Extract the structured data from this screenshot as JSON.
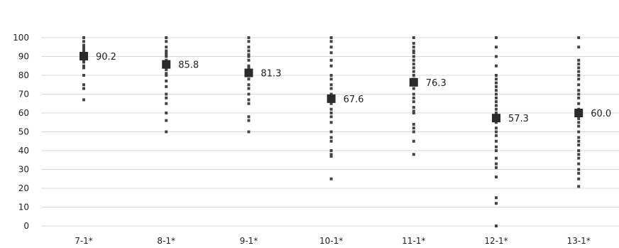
{
  "chart_data": {
    "type": "scatter",
    "title": "",
    "xlabel": "",
    "ylabel": "",
    "ylim": [
      0,
      100
    ],
    "yticks": [
      "0",
      "10",
      "20",
      "30",
      "40",
      "50",
      "60",
      "70",
      "80",
      "90",
      "100"
    ],
    "grid": true,
    "categories": [
      "7-1*",
      "8-1*",
      "9-1*",
      "10-1*",
      "11-1*",
      "12-1*",
      "13-1*"
    ],
    "means": [
      90.2,
      85.8,
      81.3,
      67.6,
      76.3,
      57.3,
      60.0
    ],
    "mean_labels": [
      "90.2",
      "85.8",
      "81.3",
      "67.6",
      "76.3",
      "57.3",
      "60.0"
    ],
    "points": [
      [
        100,
        98,
        96,
        95,
        94,
        93,
        92,
        91,
        90,
        89,
        88,
        87,
        85,
        84,
        80,
        75,
        73,
        67
      ],
      [
        100,
        98,
        95,
        93,
        92,
        91,
        90,
        88,
        87,
        85,
        83,
        81,
        80,
        77,
        74,
        70,
        68,
        65,
        60,
        56,
        50
      ],
      [
        100,
        98,
        95,
        93,
        91,
        90,
        88,
        85,
        84,
        82,
        80,
        78,
        75,
        73,
        70,
        67,
        65,
        58,
        56,
        50
      ],
      [
        100,
        98,
        95,
        92,
        88,
        85,
        80,
        78,
        75,
        73,
        70,
        68,
        65,
        62,
        60,
        58,
        55,
        50,
        47,
        45,
        40,
        38,
        37,
        25
      ],
      [
        100,
        97,
        95,
        93,
        92,
        90,
        88,
        86,
        84,
        82,
        80,
        78,
        75,
        73,
        70,
        68,
        66,
        63,
        61,
        60,
        54,
        52,
        50,
        45,
        38
      ],
      [
        100,
        95,
        90,
        85,
        80,
        78,
        76,
        74,
        72,
        70,
        68,
        66,
        64,
        62,
        60,
        58,
        55,
        52,
        50,
        48,
        45,
        42,
        40,
        36,
        33,
        31,
        26,
        15,
        12,
        0
      ],
      [
        100,
        95,
        88,
        86,
        84,
        82,
        80,
        78,
        75,
        72,
        70,
        68,
        65,
        62,
        57,
        55,
        53,
        50,
        47,
        45,
        43,
        40,
        38,
        36,
        33,
        30,
        28,
        25,
        21
      ]
    ]
  }
}
